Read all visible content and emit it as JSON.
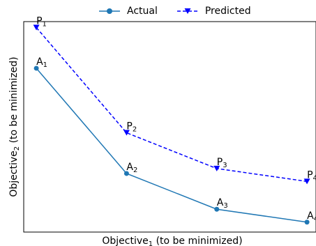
{
  "chart_data": {
    "type": "line",
    "xlabel": "Objective",
    "xlabel_sub": "1",
    "xlabel_suffix": " (to be minimized)",
    "ylabel": "Objective",
    "ylabel_sub": "2",
    "ylabel_suffix": " (to be minimized)",
    "legend_position": "top-center",
    "grid": false,
    "x": [
      1,
      2,
      3,
      4
    ],
    "xlim": [
      0.86,
      4.1
    ],
    "ylim": [
      0.88,
      3.0
    ],
    "series": [
      {
        "name": "Actual",
        "color": "#1f77b4",
        "line_style": "solid",
        "marker": "circle",
        "values": [
          2.53,
          1.47,
          1.11,
          0.98
        ],
        "point_label": "A",
        "point_subs": [
          "1",
          "2",
          "3",
          "4"
        ]
      },
      {
        "name": "Predicted",
        "color": "#0000ff",
        "line_style": "dashed",
        "marker": "triangle-down",
        "values": [
          2.94,
          1.88,
          1.52,
          1.39
        ],
        "point_label": "P",
        "point_subs": [
          "1",
          "2",
          "3",
          "4"
        ]
      }
    ]
  }
}
